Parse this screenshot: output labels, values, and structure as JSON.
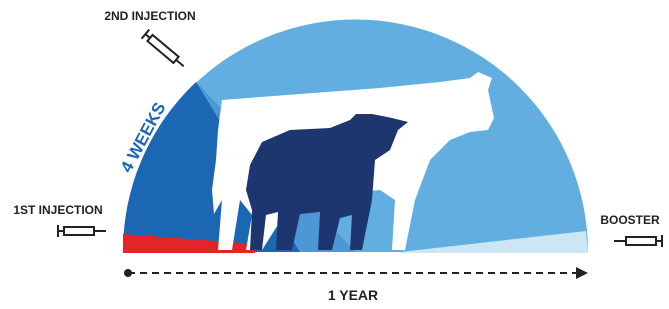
{
  "labels": {
    "second_injection": "2ND INJECTION",
    "interval": "4 WEEKS",
    "first_injection": "1ST INJECTION",
    "booster": "BOOSTER",
    "duration": "1 YEAR"
  }
}
